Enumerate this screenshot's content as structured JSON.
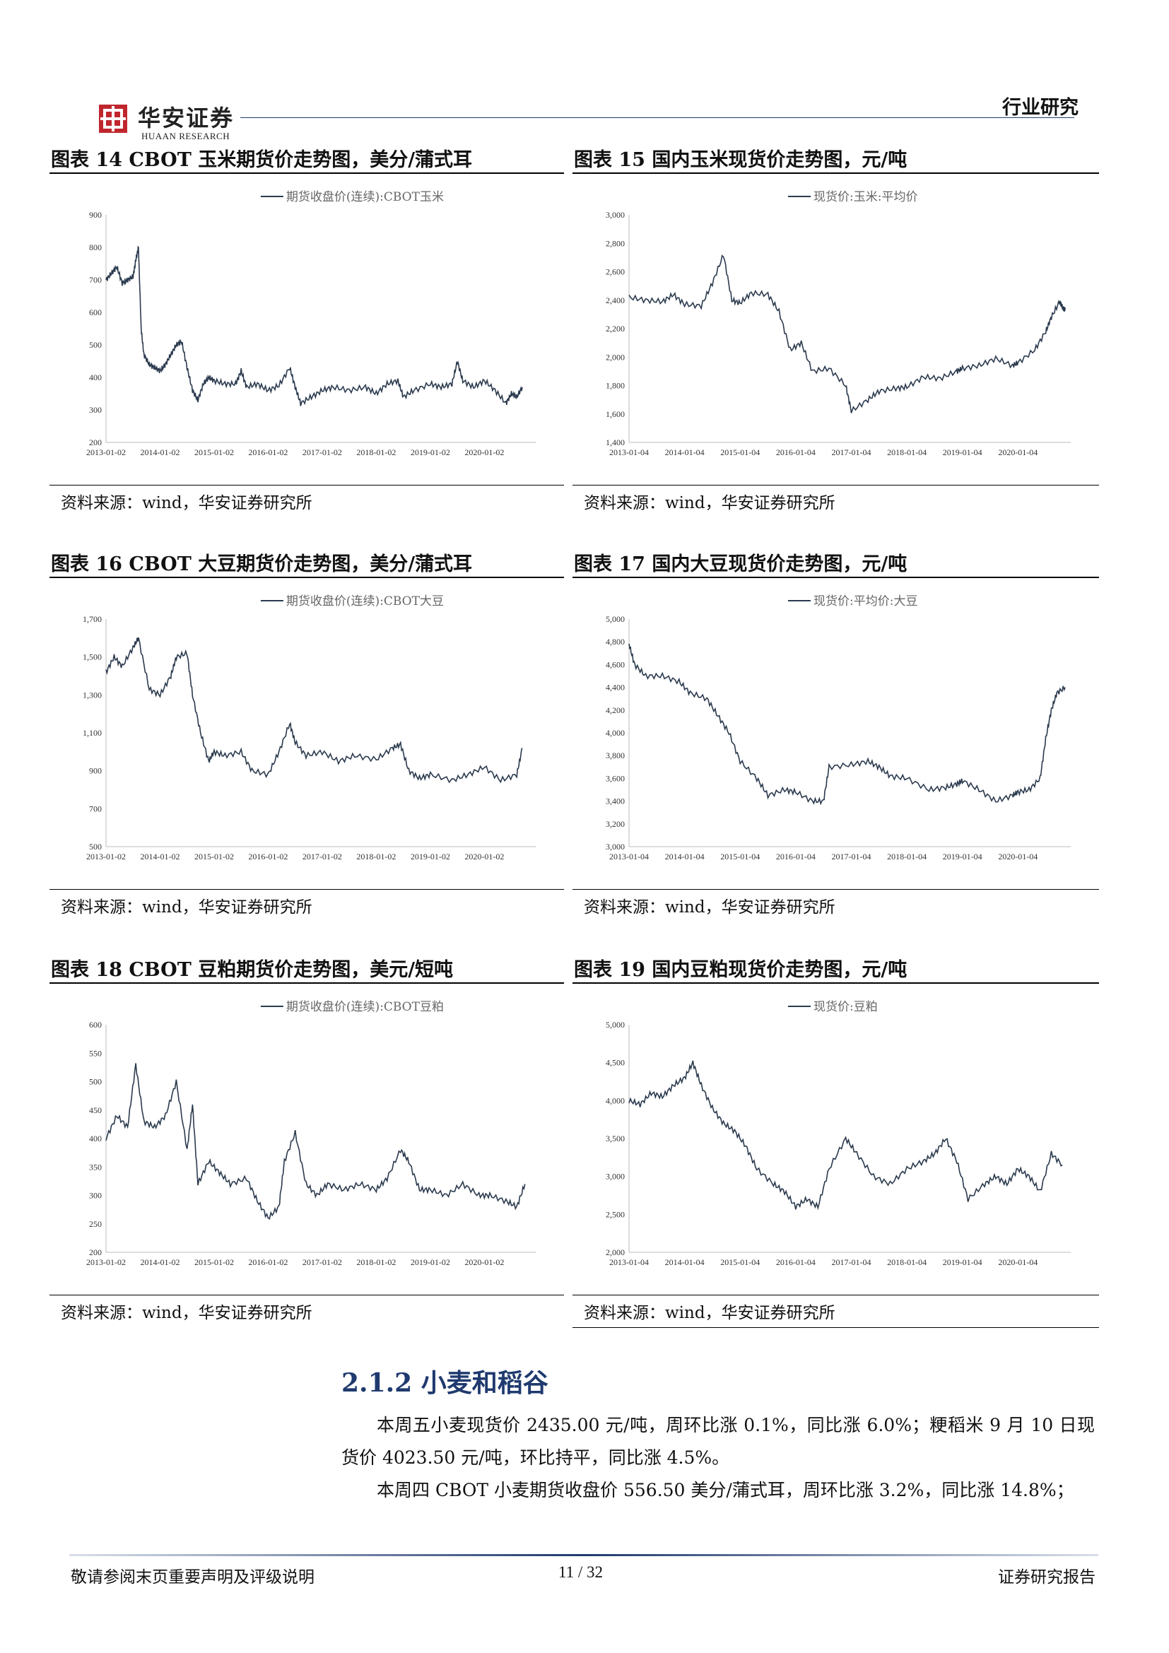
{
  "header": {
    "logo_cn": "华安证券",
    "logo_en": "HUAAN RESEARCH",
    "tag": "行业研究"
  },
  "figures": [
    {
      "title": "图表 14 CBOT 玉米期货价走势图，美分/蒲式耳",
      "source": "资料来源：wind，华安证券研究所",
      "chart_data": {
        "type": "line",
        "legend": "期货收盘价(连续):CBOT玉米",
        "ylim": [
          200,
          900
        ],
        "yticks": [
          "200",
          "300",
          "400",
          "500",
          "600",
          "700",
          "800",
          "900"
        ],
        "xticks": [
          "2013-01-02",
          "2014-01-02",
          "2015-01-02",
          "2016-01-02",
          "2017-01-02",
          "2018-01-02",
          "2019-01-02",
          "2020-01-02"
        ],
        "x": [
          2013.0,
          2013.1,
          2013.2,
          2013.3,
          2013.4,
          2013.5,
          2013.55,
          2013.6,
          2013.65,
          2013.7,
          2013.8,
          2013.9,
          2014.0,
          2014.1,
          2014.2,
          2014.3,
          2014.4,
          2014.5,
          2014.6,
          2014.7,
          2014.8,
          2014.9,
          2015.0,
          2015.2,
          2015.4,
          2015.5,
          2015.6,
          2015.8,
          2016.0,
          2016.2,
          2016.4,
          2016.5,
          2016.6,
          2016.8,
          2017.0,
          2017.2,
          2017.5,
          2017.8,
          2018.0,
          2018.2,
          2018.4,
          2018.5,
          2018.7,
          2019.0,
          2019.2,
          2019.4,
          2019.5,
          2019.6,
          2019.8,
          2020.0,
          2020.2,
          2020.4,
          2020.5,
          2020.6,
          2020.7
        ],
        "y": [
          700,
          720,
          740,
          690,
          700,
          710,
          760,
          800,
          550,
          470,
          440,
          430,
          420,
          440,
          470,
          500,
          510,
          430,
          360,
          330,
          380,
          400,
          390,
          380,
          380,
          420,
          370,
          380,
          360,
          375,
          430,
          370,
          320,
          340,
          360,
          370,
          360,
          370,
          350,
          380,
          390,
          340,
          360,
          380,
          370,
          380,
          450,
          390,
          370,
          390,
          360,
          320,
          350,
          340,
          370
        ]
      }
    },
    {
      "title": "图表 15 国内玉米现货价走势图，元/吨",
      "source": "资料来源：wind，华安证券研究所",
      "chart_data": {
        "type": "line",
        "legend": "现货价:玉米:平均价",
        "ylim": [
          1400,
          3000
        ],
        "yticks": [
          "1,400",
          "1,600",
          "1,800",
          "2,000",
          "2,200",
          "2,400",
          "2,600",
          "2,800",
          "3,000"
        ],
        "xticks": [
          "2013-01-04",
          "2014-01-04",
          "2015-01-04",
          "2016-01-04",
          "2017-01-04",
          "2018-01-04",
          "2019-01-04",
          "2020-01-04"
        ],
        "x": [
          2013.0,
          2013.3,
          2013.6,
          2013.8,
          2014.0,
          2014.3,
          2014.5,
          2014.7,
          2014.85,
          2015.0,
          2015.2,
          2015.5,
          2015.7,
          2015.9,
          2016.1,
          2016.3,
          2016.6,
          2016.9,
          2017.0,
          2017.3,
          2017.5,
          2017.8,
          2018.0,
          2018.3,
          2018.6,
          2018.9,
          2019.0,
          2019.3,
          2019.6,
          2019.9,
          2020.0,
          2020.3,
          2020.5,
          2020.6,
          2020.75,
          2020.8,
          2020.85
        ],
        "y": [
          2420,
          2400,
          2390,
          2440,
          2370,
          2360,
          2520,
          2720,
          2400,
          2380,
          2450,
          2440,
          2320,
          2050,
          2100,
          1900,
          1920,
          1800,
          1620,
          1700,
          1760,
          1780,
          1790,
          1860,
          1850,
          1900,
          1920,
          1940,
          1990,
          1940,
          1960,
          2050,
          2180,
          2280,
          2390,
          2350,
          2330
        ]
      }
    },
    {
      "title": "图表 16 CBOT 大豆期货价走势图，美分/蒲式耳",
      "source": "资料来源：wind，华安证券研究所",
      "chart_data": {
        "type": "line",
        "legend": "期货收盘价(连续):CBOT大豆",
        "ylim": [
          500,
          1700
        ],
        "yticks": [
          "500",
          "700",
          "900",
          "1,100",
          "1,300",
          "1,500",
          "1,700"
        ],
        "xticks": [
          "2013-01-02",
          "2014-01-02",
          "2015-01-02",
          "2016-01-02",
          "2017-01-02",
          "2018-01-02",
          "2019-01-02",
          "2020-01-02"
        ],
        "x": [
          2013.0,
          2013.15,
          2013.3,
          2013.5,
          2013.6,
          2013.8,
          2014.0,
          2014.2,
          2014.3,
          2014.5,
          2014.6,
          2014.75,
          2014.9,
          2015.0,
          2015.2,
          2015.5,
          2015.7,
          2016.0,
          2016.2,
          2016.4,
          2016.5,
          2016.7,
          2017.0,
          2017.3,
          2017.6,
          2018.0,
          2018.3,
          2018.45,
          2018.6,
          2018.8,
          2019.0,
          2019.4,
          2019.7,
          2020.0,
          2020.3,
          2020.6,
          2020.7
        ],
        "y": [
          1420,
          1500,
          1450,
          1550,
          1600,
          1330,
          1300,
          1400,
          1500,
          1520,
          1300,
          1100,
          950,
          1000,
          980,
          1000,
          900,
          880,
          1000,
          1150,
          1050,
          980,
          1000,
          950,
          980,
          960,
          1020,
          1040,
          900,
          860,
          880,
          850,
          880,
          920,
          850,
          880,
          1020
        ]
      }
    },
    {
      "title": "图表 17 国内大豆现货价走势图，元/吨",
      "source": "资料来源：wind，华安证券研究所",
      "chart_data": {
        "type": "line",
        "legend": "现货价:平均价:大豆",
        "ylim": [
          3000,
          5000
        ],
        "yticks": [
          "3,000",
          "3,200",
          "3,400",
          "3,600",
          "3,800",
          "4,000",
          "4,200",
          "4,400",
          "4,600",
          "4,800",
          "5,000"
        ],
        "xticks": [
          "2013-01-04",
          "2014-01-04",
          "2015-01-04",
          "2016-01-04",
          "2017-01-04",
          "2018-01-04",
          "2019-01-04",
          "2020-01-04"
        ],
        "x": [
          2013.0,
          2013.1,
          2013.3,
          2013.6,
          2013.9,
          2014.1,
          2014.4,
          2014.6,
          2014.8,
          2015.0,
          2015.3,
          2015.5,
          2015.8,
          2016.0,
          2016.3,
          2016.5,
          2016.6,
          2017.0,
          2017.3,
          2017.5,
          2017.7,
          2018.0,
          2018.4,
          2018.7,
          2018.9,
          2019.0,
          2019.3,
          2019.6,
          2019.9,
          2020.0,
          2020.2,
          2020.4,
          2020.5,
          2020.6,
          2020.7,
          2020.85
        ],
        "y": [
          4780,
          4600,
          4500,
          4500,
          4450,
          4350,
          4300,
          4150,
          4000,
          3750,
          3600,
          3450,
          3500,
          3480,
          3400,
          3400,
          3700,
          3720,
          3750,
          3700,
          3620,
          3600,
          3500,
          3520,
          3550,
          3580,
          3500,
          3400,
          3450,
          3480,
          3500,
          3600,
          3950,
          4200,
          4350,
          4400
        ]
      }
    },
    {
      "title": "图表 18 CBOT 豆粕期货价走势图，美元/短吨",
      "source": "资料来源：wind，华安证券研究所",
      "chart_data": {
        "type": "line",
        "legend": "期货收盘价(连续):CBOT豆粕",
        "ylim": [
          200,
          600
        ],
        "yticks": [
          "200",
          "250",
          "300",
          "350",
          "400",
          "450",
          "500",
          "550",
          "600"
        ],
        "xticks": [
          "2013-01-02",
          "2014-01-02",
          "2015-01-02",
          "2016-01-02",
          "2017-01-02",
          "2018-01-02",
          "2019-01-02",
          "2020-01-02"
        ],
        "x": [
          2013.0,
          2013.2,
          2013.4,
          2013.55,
          2013.7,
          2013.9,
          2014.1,
          2014.3,
          2014.5,
          2014.6,
          2014.7,
          2014.9,
          2015.1,
          2015.3,
          2015.6,
          2015.8,
          2016.0,
          2016.2,
          2016.3,
          2016.5,
          2016.7,
          2016.9,
          2017.1,
          2017.4,
          2017.7,
          2018.0,
          2018.2,
          2018.45,
          2018.6,
          2018.8,
          2019.0,
          2019.3,
          2019.6,
          2019.9,
          2020.1,
          2020.4,
          2020.6,
          2020.75
        ],
        "y": [
          400,
          440,
          420,
          530,
          430,
          420,
          440,
          500,
          380,
          460,
          320,
          360,
          340,
          320,
          330,
          290,
          260,
          280,
          360,
          410,
          320,
          300,
          320,
          310,
          320,
          310,
          330,
          380,
          360,
          310,
          310,
          300,
          320,
          300,
          300,
          290,
          280,
          320
        ]
      }
    },
    {
      "title": "图表 19 国内豆粕现货价走势图，元/吨",
      "source": "资料来源：wind，华安证券研究所",
      "chart_data": {
        "type": "line",
        "legend": "现货价:豆粕",
        "ylim": [
          2000,
          5000
        ],
        "yticks": [
          "2,000",
          "2,500",
          "3,000",
          "3,500",
          "4,000",
          "4,500",
          "5,000"
        ],
        "xticks": [
          "2013-01-04",
          "2014-01-04",
          "2015-01-04",
          "2016-01-04",
          "2017-01-04",
          "2018-01-04",
          "2019-01-04",
          "2020-01-04"
        ],
        "x": [
          2013.0,
          2013.2,
          2013.4,
          2013.6,
          2013.8,
          2014.0,
          2014.15,
          2014.3,
          2014.5,
          2014.7,
          2014.9,
          2015.1,
          2015.3,
          2015.6,
          2015.8,
          2016.0,
          2016.2,
          2016.4,
          2016.6,
          2016.9,
          2017.1,
          2017.4,
          2017.7,
          2018.0,
          2018.3,
          2018.5,
          2018.7,
          2018.9,
          2019.1,
          2019.4,
          2019.6,
          2019.8,
          2020.0,
          2020.2,
          2020.4,
          2020.6,
          2020.8
        ],
        "y": [
          4000,
          3950,
          4100,
          4050,
          4200,
          4300,
          4500,
          4200,
          3900,
          3700,
          3600,
          3400,
          3100,
          2900,
          2800,
          2600,
          2700,
          2600,
          3100,
          3500,
          3300,
          3000,
          2900,
          3100,
          3200,
          3300,
          3500,
          3200,
          2700,
          2900,
          3000,
          2900,
          3100,
          3000,
          2800,
          3300,
          3150
        ]
      }
    }
  ],
  "section": {
    "title": "2.1.2  小麦和稻谷",
    "paragraphs": [
      "本周五小麦现货价 2435.00 元/吨，周环比涨 0.1%，同比涨 6.0%；粳稻米 9 月 10 日现货价 4023.50 元/吨，环比持平，同比涨 4.5%。",
      "本周四 CBOT 小麦期货收盘价 556.50 美分/蒲式耳，周环比涨 3.2%，同比涨 14.8%；"
    ]
  },
  "footer": {
    "left": "敬请参阅末页重要声明及评级说明",
    "page": "11 / 32",
    "right": "证券研究报告"
  },
  "colors": {
    "line": "#2b3a4e",
    "brand": "#c0262d",
    "accent": "#1f3a6e"
  }
}
